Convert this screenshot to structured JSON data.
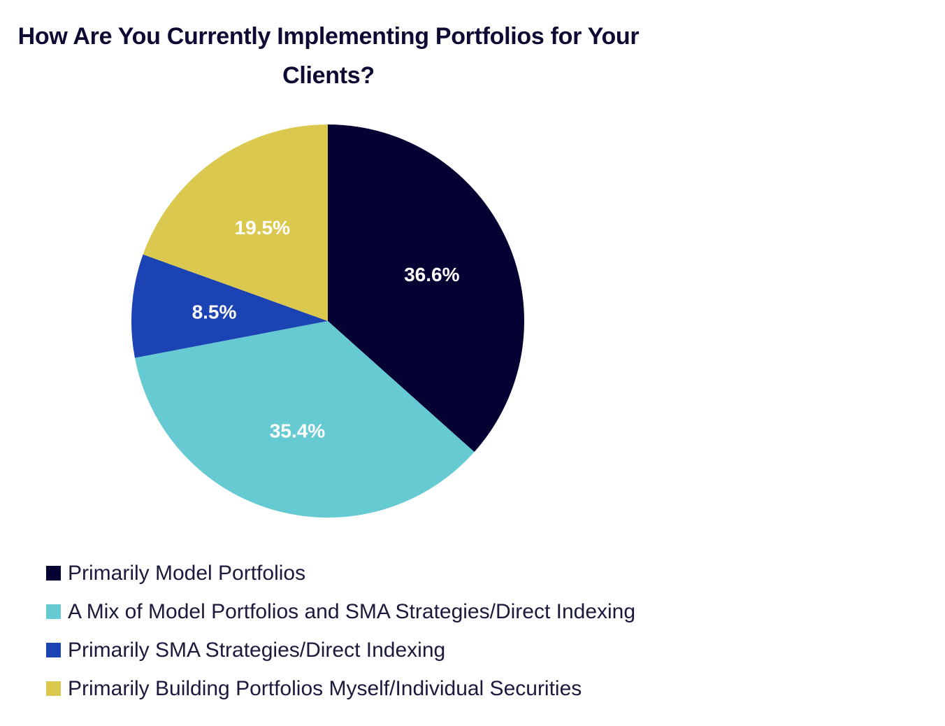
{
  "chart_data": {
    "type": "pie",
    "title": "How Are You Currently Implementing Portfolios for Your Clients?",
    "categories": [
      "Primarily Model Portfolios",
      "A Mix of Model Portfolios and SMA Strategies/Direct Indexing",
      "Primarily SMA Strategies/Direct Indexing",
      "Primarily Building Portfolios Myself/Individual Securities"
    ],
    "values": [
      36.6,
      35.4,
      8.5,
      19.5
    ],
    "labels": [
      "36.6%",
      "35.4%",
      "8.5%",
      "19.5%"
    ],
    "colors": [
      "#050133",
      "#66cad2",
      "#1c43b4",
      "#dbc94f"
    ],
    "start_angle": "12 o'clock",
    "direction": "clockwise",
    "legend_position": "bottom-left"
  }
}
